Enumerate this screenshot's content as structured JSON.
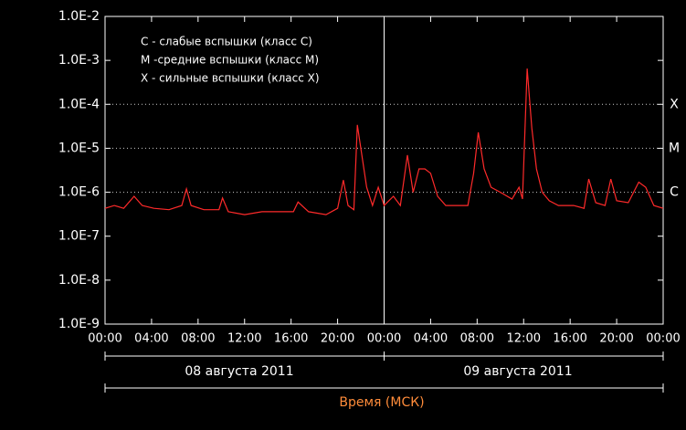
{
  "chart_data": {
    "type": "line",
    "legend_lines": [
      "C - слабые вспышки (класс C)",
      "M -средние вспышки (класс M)",
      "X - сильные вспышки (класс X)"
    ],
    "x_label": "Время (МСК)",
    "date_labels": [
      "08 августа 2011",
      "09 августа 2011"
    ],
    "log_scale": true,
    "ylim": [
      1e-09,
      0.01
    ],
    "yticks": [
      {
        "value": 0.01,
        "label": "1.0E-2"
      },
      {
        "value": 0.001,
        "label": "1.0E-3"
      },
      {
        "value": 0.0001,
        "label": "1.0E-4"
      },
      {
        "value": 1e-05,
        "label": "1.0E-5"
      },
      {
        "value": 1e-06,
        "label": "1.0E-6"
      },
      {
        "value": 1e-07,
        "label": "1.0E-7"
      },
      {
        "value": 1e-08,
        "label": "1.0E-8"
      },
      {
        "value": 1e-09,
        "label": "1.0E-9"
      }
    ],
    "levels": [
      {
        "value": 0.0001,
        "label": "X"
      },
      {
        "value": 1e-05,
        "label": "M"
      },
      {
        "value": 1e-06,
        "label": "C"
      }
    ],
    "xlim": [
      0,
      48
    ],
    "xticks": [
      {
        "value": 0,
        "label": "00:00"
      },
      {
        "value": 4,
        "label": "04:00"
      },
      {
        "value": 8,
        "label": "08:00"
      },
      {
        "value": 12,
        "label": "12:00"
      },
      {
        "value": 16,
        "label": "16:00"
      },
      {
        "value": 20,
        "label": "20:00"
      },
      {
        "value": 24,
        "label": "00:00"
      },
      {
        "value": 28,
        "label": "04:00"
      },
      {
        "value": 32,
        "label": "08:00"
      },
      {
        "value": 36,
        "label": "12:00"
      },
      {
        "value": 40,
        "label": "16:00"
      },
      {
        "value": 44,
        "label": "20:00"
      },
      {
        "value": 48,
        "label": "00:00"
      }
    ],
    "series": [
      {
        "color": "#ff2a2a",
        "x": [
          0,
          0.8,
          1.6,
          2.5,
          3.2,
          4.2,
          5.5,
          6.6,
          7.0,
          7.4,
          8.5,
          9.8,
          10.1,
          10.6,
          12,
          13.5,
          15,
          16.2,
          16.6,
          17.5,
          19,
          20.0,
          20.5,
          20.9,
          21.4,
          21.7,
          22.0,
          22.5,
          23.0,
          23.5,
          24,
          24.8,
          25.4,
          26.0,
          26.5,
          27.0,
          27.5,
          28.0,
          28.6,
          29.3,
          30.2,
          31.2,
          31.7,
          32.1,
          32.6,
          33.2,
          34.0,
          35.0,
          35.6,
          35.9,
          36.3,
          36.7,
          37.1,
          37.6,
          38.2,
          39.0,
          40.3,
          41.2,
          41.6,
          42.2,
          43.0,
          43.5,
          44.0,
          45.0,
          45.9,
          46.5,
          47.2,
          48
        ],
        "values": [
          4.3e-07,
          5e-07,
          4.3e-07,
          8.1e-07,
          5e-07,
          4.3e-07,
          4e-07,
          5e-07,
          1.2e-06,
          5e-07,
          4e-07,
          4e-07,
          7.4e-07,
          3.6e-07,
          3.1e-07,
          3.6e-07,
          3.6e-07,
          3.6e-07,
          6e-07,
          3.6e-07,
          3.1e-07,
          4.3e-07,
          1.9e-06,
          5e-07,
          4e-07,
          3.4e-05,
          1e-05,
          1.3e-06,
          5e-07,
          1.3e-06,
          5e-07,
          8.1e-07,
          5e-07,
          7e-06,
          1e-06,
          3.4e-06,
          3.4e-06,
          2.7e-06,
          8.1e-07,
          5e-07,
          5e-07,
          5e-07,
          2.7e-06,
          2.3e-05,
          3.4e-06,
          1.3e-06,
          1e-06,
          7e-07,
          1.3e-06,
          7e-07,
          0.00065,
          2.9e-05,
          3.4e-06,
          1e-06,
          6.4e-07,
          5e-07,
          5e-07,
          4.3e-07,
          2e-06,
          5.8e-07,
          5e-07,
          2e-06,
          6.4e-07,
          5.8e-07,
          1.7e-06,
          1.3e-06,
          5e-07,
          4.3e-07
        ]
      }
    ]
  }
}
